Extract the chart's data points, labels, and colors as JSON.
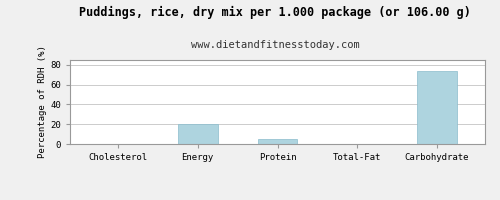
{
  "title": "Puddings, rice, dry mix per 1.000 package (or 106.00 g)",
  "subtitle": "www.dietandfitnesstoday.com",
  "categories": [
    "Cholesterol",
    "Energy",
    "Protein",
    "Total-Fat",
    "Carbohydrate"
  ],
  "values": [
    0,
    20,
    5,
    0.5,
    74
  ],
  "bar_color": "#aed4df",
  "ylabel": "Percentage of RDH (%)",
  "ylim": [
    0,
    85
  ],
  "yticks": [
    0,
    20,
    40,
    60,
    80
  ],
  "fig_background": "#f0f0f0",
  "ax_background": "#ffffff",
  "grid_color": "#cccccc",
  "title_fontsize": 8.5,
  "subtitle_fontsize": 7.5,
  "label_fontsize": 6.5,
  "tick_fontsize": 6.5,
  "border_color": "#999999"
}
